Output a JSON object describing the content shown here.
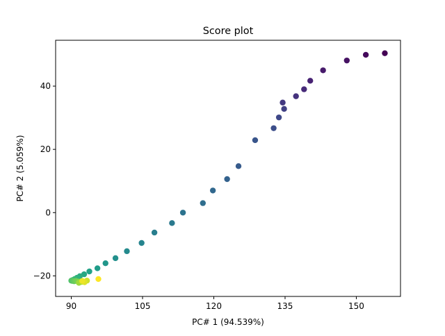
{
  "chart_data": {
    "type": "scatter",
    "title": "Score plot",
    "xlabel": "PC# 1 (94.539%)",
    "ylabel": "PC# 2 (5.059%)",
    "xlim": [
      86.7,
      159.3
    ],
    "ylim": [
      -26.5,
      54.5
    ],
    "xticks": [
      90,
      105,
      120,
      135,
      150
    ],
    "yticks": [
      -20,
      0,
      20,
      40
    ],
    "grid": false,
    "colormap": "viridis",
    "points": [
      {
        "x": 156.0,
        "y": 50.4
      },
      {
        "x": 152.0,
        "y": 49.9
      },
      {
        "x": 148.0,
        "y": 48.1
      },
      {
        "x": 143.0,
        "y": 45.0
      },
      {
        "x": 140.3,
        "y": 41.7
      },
      {
        "x": 139.0,
        "y": 39.0
      },
      {
        "x": 137.3,
        "y": 36.8
      },
      {
        "x": 134.5,
        "y": 34.8
      },
      {
        "x": 134.8,
        "y": 32.8
      },
      {
        "x": 133.7,
        "y": 30.1
      },
      {
        "x": 132.6,
        "y": 26.7
      },
      {
        "x": 128.7,
        "y": 22.9
      },
      {
        "x": 125.2,
        "y": 14.7
      },
      {
        "x": 122.8,
        "y": 10.6
      },
      {
        "x": 119.8,
        "y": 7.0
      },
      {
        "x": 117.7,
        "y": 3.0
      },
      {
        "x": 113.5,
        "y": 0.0
      },
      {
        "x": 111.2,
        "y": -3.3
      },
      {
        "x": 107.5,
        "y": -6.3
      },
      {
        "x": 104.8,
        "y": -9.6
      },
      {
        "x": 101.7,
        "y": -12.2
      },
      {
        "x": 99.3,
        "y": -14.4
      },
      {
        "x": 97.2,
        "y": -16.0
      },
      {
        "x": 95.5,
        "y": -17.6
      },
      {
        "x": 93.8,
        "y": -18.6
      },
      {
        "x": 92.7,
        "y": -19.5
      },
      {
        "x": 91.8,
        "y": -20.1
      },
      {
        "x": 91.2,
        "y": -20.6
      },
      {
        "x": 90.7,
        "y": -21.0
      },
      {
        "x": 90.3,
        "y": -21.3
      },
      {
        "x": 90.0,
        "y": -21.5
      },
      {
        "x": 90.2,
        "y": -21.6
      },
      {
        "x": 90.6,
        "y": -21.7
      },
      {
        "x": 91.0,
        "y": -21.6
      },
      {
        "x": 91.5,
        "y": -21.8
      },
      {
        "x": 91.8,
        "y": -22.0
      },
      {
        "x": 91.6,
        "y": -22.2
      },
      {
        "x": 92.2,
        "y": -21.9
      },
      {
        "x": 92.6,
        "y": -21.8
      },
      {
        "x": 93.3,
        "y": -21.5
      },
      {
        "x": 92.8,
        "y": -22.0
      },
      {
        "x": 92.3,
        "y": -21.6
      },
      {
        "x": 95.7,
        "y": -21.0
      }
    ]
  }
}
